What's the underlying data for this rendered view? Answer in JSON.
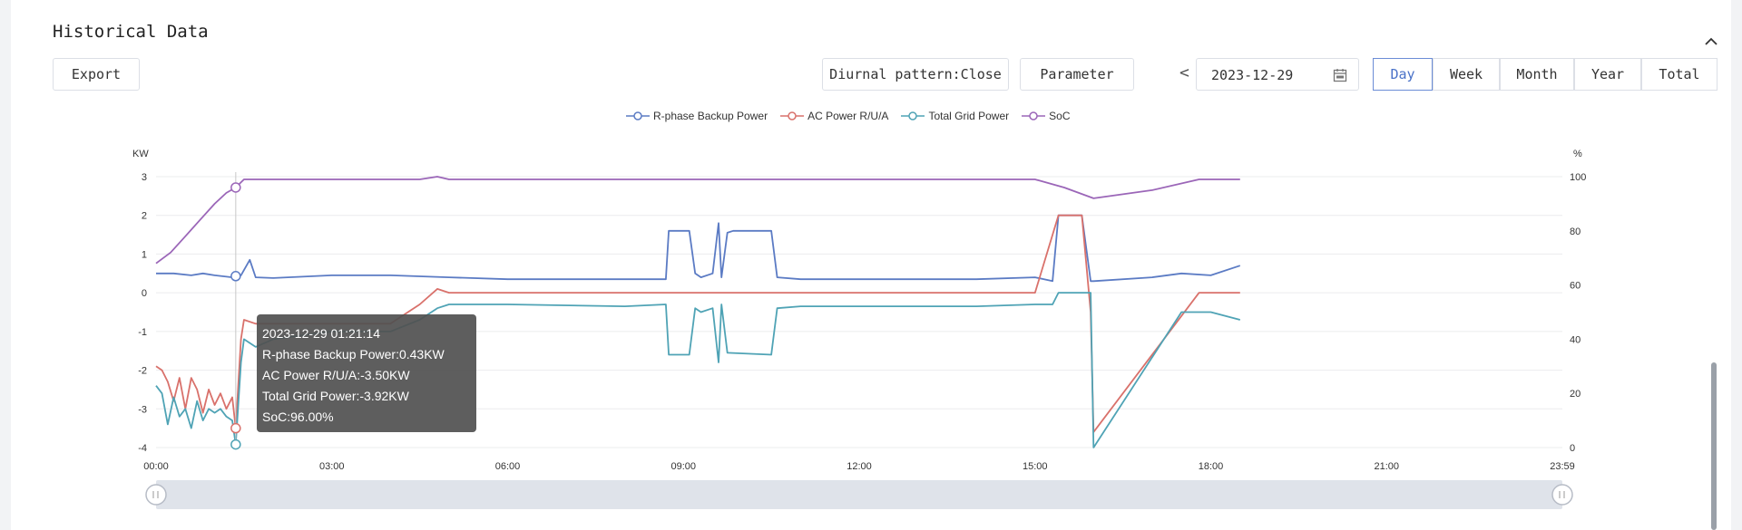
{
  "header": {
    "title": "Historical Data"
  },
  "toolbar": {
    "export_label": "Export",
    "diurnal_label": "Diurnal pattern:Close",
    "parameter_label": "Parameter",
    "prev_label": "<",
    "date_value": "2023-12-29",
    "periods": [
      "Day",
      "Week",
      "Month",
      "Year",
      "Total"
    ],
    "active_period": "Day"
  },
  "colors": {
    "backup": "#5b7bc4",
    "ac": "#d9716b",
    "grid": "#4fa3b5",
    "soc": "#9b66b8",
    "gridline": "#ebecee",
    "axis_text": "#333333"
  },
  "tooltip": {
    "time": "2023-12-29 01:21:14",
    "line1": "R-phase Backup Power:0.43KW",
    "line2": "AC Power R/U/A:-3.50KW",
    "line3": "Total Grid Power:-3.92KW",
    "line4": "SoC:96.00%"
  },
  "chart_data": {
    "type": "line",
    "title": "",
    "xlabel": "",
    "ylabel_left": "KW",
    "ylabel_right": "%",
    "x_ticks": [
      "00:00",
      "03:00",
      "06:00",
      "09:00",
      "12:00",
      "15:00",
      "18:00",
      "21:00",
      "23:59"
    ],
    "x_range_hours": [
      0,
      24
    ],
    "ylim_left": [
      -4,
      3
    ],
    "ylim_right": [
      0,
      100
    ],
    "y_ticks_left": [
      3,
      2,
      1,
      0,
      -1,
      -2,
      -3,
      -4
    ],
    "y_ticks_right": [
      100,
      80,
      60,
      40,
      20,
      0
    ],
    "grid": true,
    "legend_position": "top-center",
    "series": [
      {
        "name": "R-phase Backup Power",
        "axis": "left",
        "color": "#5b7bc4",
        "x": [
          0,
          0.3,
          0.6,
          0.8,
          1.0,
          1.3,
          1.36,
          1.45,
          1.6,
          1.7,
          2.0,
          3.0,
          4.0,
          5.0,
          6.0,
          7.0,
          8.0,
          8.7,
          8.75,
          8.85,
          9.1,
          9.2,
          9.3,
          9.5,
          9.6,
          9.65,
          9.75,
          9.85,
          10.0,
          10.5,
          10.6,
          11.0,
          12.0,
          13.0,
          14.0,
          15.0,
          15.3,
          15.4,
          15.5,
          15.8,
          15.95,
          16.0,
          17.0,
          17.5,
          18.0,
          18.5
        ],
        "y": [
          0.5,
          0.5,
          0.45,
          0.5,
          0.45,
          0.4,
          0.43,
          0.45,
          0.85,
          0.4,
          0.38,
          0.45,
          0.45,
          0.4,
          0.35,
          0.35,
          0.35,
          0.35,
          1.6,
          1.6,
          1.6,
          0.5,
          0.4,
          0.5,
          1.8,
          0.4,
          1.55,
          1.6,
          1.6,
          1.6,
          0.4,
          0.35,
          0.35,
          0.35,
          0.35,
          0.4,
          0.3,
          2.0,
          2.0,
          2.0,
          0.3,
          0.3,
          0.4,
          0.5,
          0.45,
          0.7
        ]
      },
      {
        "name": "AC Power R/U/A",
        "axis": "left",
        "color": "#d9716b",
        "x": [
          0,
          0.1,
          0.2,
          0.3,
          0.4,
          0.5,
          0.6,
          0.7,
          0.8,
          0.9,
          1.0,
          1.1,
          1.2,
          1.3,
          1.36,
          1.45,
          1.5,
          1.7,
          2.0,
          3.0,
          4.0,
          4.5,
          4.8,
          5.0,
          6.0,
          9.0,
          12.0,
          15.0,
          15.4,
          15.5,
          15.8,
          15.95,
          16.0,
          17.8,
          18.5
        ],
        "y": [
          -1.9,
          -2.0,
          -2.3,
          -2.8,
          -2.2,
          -3.0,
          -2.2,
          -2.5,
          -3.1,
          -2.5,
          -2.9,
          -2.6,
          -3.0,
          -2.7,
          -3.5,
          -1.2,
          -0.7,
          -0.8,
          -0.8,
          -0.8,
          -0.8,
          -0.3,
          0.1,
          0.0,
          0.0,
          0.0,
          0.0,
          0.0,
          2.0,
          2.0,
          2.0,
          -0.5,
          -3.6,
          0.0,
          0.0
        ]
      },
      {
        "name": "Total Grid Power",
        "axis": "left",
        "color": "#4fa3b5",
        "x": [
          0,
          0.1,
          0.2,
          0.3,
          0.4,
          0.5,
          0.6,
          0.7,
          0.8,
          0.9,
          1.0,
          1.1,
          1.2,
          1.3,
          1.36,
          1.45,
          1.5,
          1.7,
          2.0,
          3.0,
          4.0,
          4.5,
          4.8,
          5.0,
          6.0,
          8.0,
          8.7,
          8.75,
          9.1,
          9.2,
          9.3,
          9.5,
          9.6,
          9.65,
          9.75,
          10.5,
          10.6,
          11.0,
          12.0,
          13.0,
          14.0,
          15.0,
          15.3,
          15.4,
          15.95,
          16.0,
          17.5,
          18.0,
          18.5
        ],
        "y": [
          -2.4,
          -2.6,
          -3.4,
          -2.7,
          -3.2,
          -3.0,
          -3.5,
          -2.8,
          -3.3,
          -3.0,
          -3.1,
          -3.0,
          -3.2,
          -3.3,
          -3.92,
          -1.8,
          -1.2,
          -1.4,
          -1.2,
          -1.0,
          -1.0,
          -0.7,
          -0.4,
          -0.3,
          -0.3,
          -0.35,
          -0.3,
          -1.6,
          -1.6,
          -0.4,
          -0.5,
          -0.4,
          -1.8,
          -0.3,
          -1.55,
          -1.6,
          -0.4,
          -0.35,
          -0.35,
          -0.35,
          -0.35,
          -0.3,
          -0.3,
          0.0,
          0.0,
          -4.0,
          -0.5,
          -0.5,
          -0.7
        ]
      },
      {
        "name": "SoC",
        "axis": "right",
        "color": "#9b66b8",
        "x": [
          0,
          0.25,
          0.5,
          0.75,
          1.0,
          1.2,
          1.36,
          1.5,
          3.0,
          4.5,
          4.8,
          5.0,
          6.0,
          9.0,
          12.0,
          15.0,
          15.5,
          16.0,
          17.0,
          17.8,
          18.5
        ],
        "y": [
          68,
          72,
          78,
          84,
          90,
          94,
          96,
          99,
          99,
          99,
          100,
          99,
          99,
          99,
          99,
          99,
          96,
          92,
          95,
          99,
          99
        ]
      }
    ]
  }
}
